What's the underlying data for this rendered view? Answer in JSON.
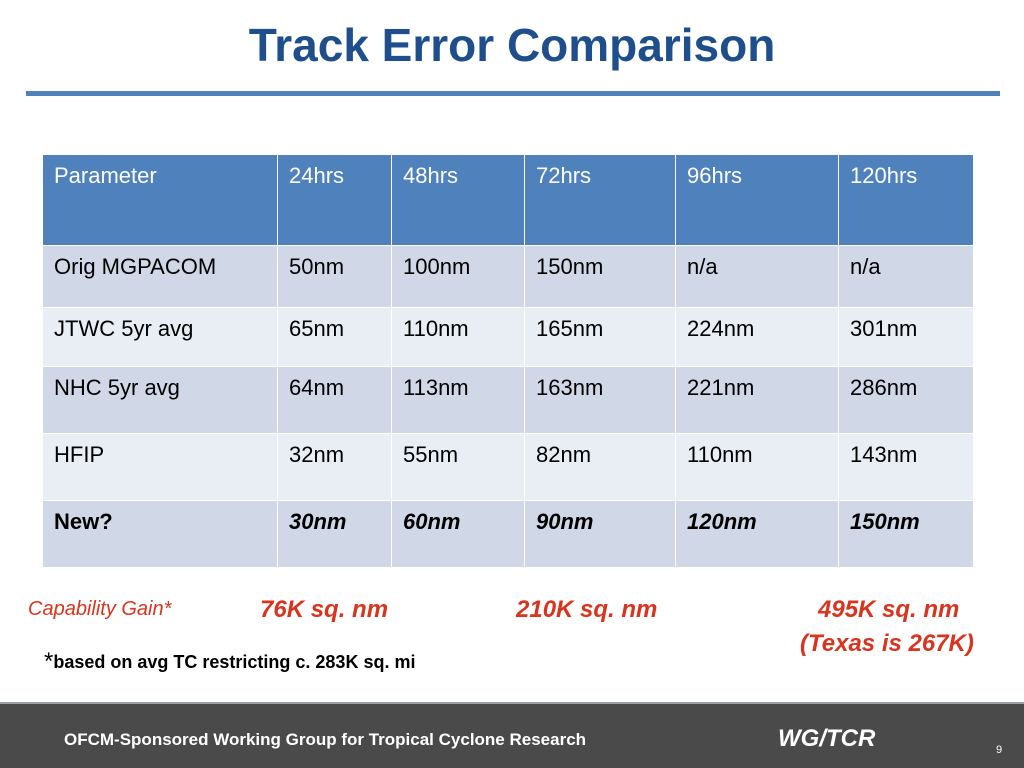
{
  "title": "Track Error Comparison",
  "table": {
    "headers": [
      "Parameter",
      "24hrs",
      "48hrs",
      "72hrs",
      "96hrs",
      "120hrs"
    ],
    "rows": [
      [
        "Orig MGPACOM",
        "50nm",
        "100nm",
        "150nm",
        "n/a",
        "n/a"
      ],
      [
        "JTWC 5yr avg",
        "65nm",
        "110nm",
        "165nm",
        "224nm",
        "301nm"
      ],
      [
        "NHC 5yr avg",
        "64nm",
        "113nm",
        "163nm",
        "221nm",
        "286nm"
      ],
      [
        "HFIP",
        "32nm",
        "55nm",
        "82nm",
        "110nm",
        "143nm"
      ],
      [
        "New?",
        "30nm",
        "60nm",
        "90nm",
        "120nm",
        "150nm"
      ]
    ]
  },
  "capability": {
    "label": "Capability Gain*",
    "values": [
      "76K sq. nm",
      "210K sq. nm",
      "495K sq. nm"
    ],
    "note": "(Texas is 267K)"
  },
  "footnote": {
    "marker": "*",
    "text": "based on avg TC restricting c. 283K sq. mi"
  },
  "footer": {
    "text": "OFCM-Sponsored Working Group for Tropical Cyclone Research",
    "logo": "WG/TCR",
    "page": "9"
  },
  "colors": {
    "title": "#1f4e8c",
    "header_fill": "#4f81bd",
    "row_odd": "#d0d8e8",
    "row_even": "#e9edf4",
    "accent_red": "#d9341e",
    "footer_bg": "#4a4a4a"
  }
}
